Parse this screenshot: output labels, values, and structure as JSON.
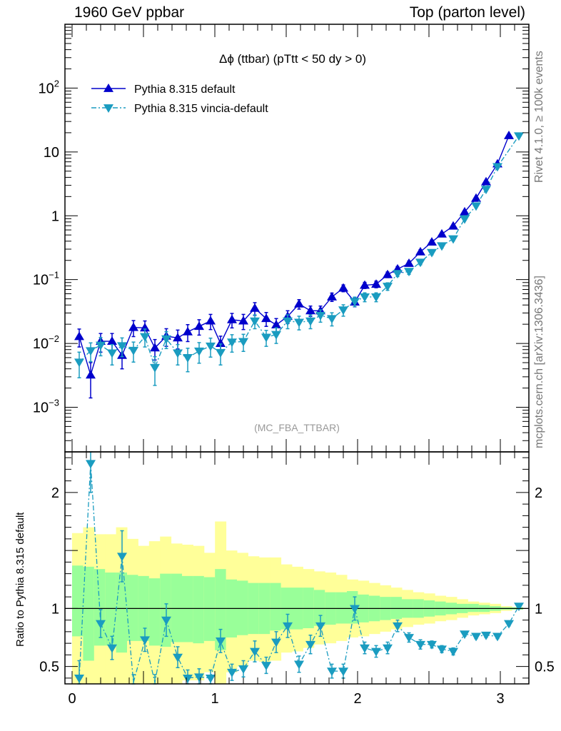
{
  "header": {
    "left": "1960 GeV ppbar",
    "right": "Top (parton level)"
  },
  "side_labels": {
    "rivet": "Rivet 4.1.0, ≥ 100k events",
    "mcplots": "mcplots.cern.ch [arXiv:1306.3436]"
  },
  "chart_data": {
    "type": "line",
    "title": "Δϕ (ttbar) (pTtt < 50 dy > 0)",
    "watermark": "(MC_FBA_TTBAR)",
    "xlabel": "",
    "ylabel": "",
    "xlim": [
      -0.05,
      3.2
    ],
    "ylim_log": [
      0.0002,
      1000
    ],
    "y_ticks": [
      {
        "value": 0.001,
        "base": "10",
        "exp": "−3"
      },
      {
        "value": 0.01,
        "base": "10",
        "exp": "−2"
      },
      {
        "value": 0.1,
        "base": "10",
        "exp": "−1"
      },
      {
        "value": 1,
        "base": "1",
        "exp": ""
      },
      {
        "value": 10,
        "base": "10",
        "exp": ""
      },
      {
        "value": 100,
        "base": "10",
        "exp": "2"
      }
    ],
    "x_tick_labels": [
      "0",
      "1",
      "2",
      "3"
    ],
    "x": [
      0.05,
      0.13,
      0.2,
      0.28,
      0.35,
      0.43,
      0.51,
      0.58,
      0.66,
      0.74,
      0.81,
      0.89,
      0.97,
      1.04,
      1.12,
      1.2,
      1.28,
      1.36,
      1.43,
      1.51,
      1.59,
      1.67,
      1.74,
      1.82,
      1.9,
      1.98,
      2.05,
      2.13,
      2.21,
      2.28,
      2.36,
      2.44,
      2.52,
      2.59,
      2.67,
      2.75,
      2.83,
      2.9,
      2.98,
      3.06,
      3.13
    ],
    "series": [
      {
        "name": "Pythia 8.315 default",
        "color": "#0000cc",
        "marker": "triangle-up",
        "line": "solid",
        "values": [
          0.0128,
          0.0032,
          0.0108,
          0.0108,
          0.0065,
          0.0178,
          0.0175,
          0.0085,
          0.013,
          0.0122,
          0.0152,
          0.0185,
          0.0225,
          0.01,
          0.0235,
          0.0225,
          0.0355,
          0.0245,
          0.0195,
          0.0265,
          0.0415,
          0.0325,
          0.0325,
          0.0535,
          0.0735,
          0.0445,
          0.0815,
          0.0845,
          0.1195,
          0.1465,
          0.1795,
          0.2715,
          0.3875,
          0.5175,
          0.6885,
          1.1475,
          1.8775,
          3.3965,
          6.4975,
          17.9975,
          null
        ],
        "err": [
          0.004,
          0.0018,
          0.0035,
          0.0035,
          0.0025,
          0.005,
          0.005,
          0.003,
          0.004,
          0.004,
          0.0045,
          0.005,
          0.006,
          0.003,
          0.006,
          0.006,
          0.008,
          0.006,
          0.005,
          0.006,
          0.007,
          0.006,
          0.006,
          0.008,
          0.009,
          0.007,
          0.009,
          0.01,
          0.012,
          0.014,
          0.016,
          0.022,
          0.03,
          0.035,
          0.045,
          0.07,
          0.1,
          0.16,
          0.28,
          0.6,
          null
        ]
      },
      {
        "name": "Pythia 8.315 vincia-default",
        "color": "#1a9cc0",
        "marker": "triangle-down",
        "line": "dashdot",
        "values": [
          0.0051,
          0.0077,
          0.0094,
          0.0071,
          0.0092,
          0.0078,
          0.0128,
          0.0042,
          0.0118,
          0.0071,
          0.006,
          0.0076,
          0.0091,
          0.0072,
          0.0105,
          0.0107,
          0.0225,
          0.0125,
          0.0138,
          0.0225,
          0.0215,
          0.0225,
          0.0275,
          0.0245,
          0.0335,
          0.0455,
          0.0535,
          0.0535,
          0.0785,
          0.1245,
          0.1345,
          0.1875,
          0.2665,
          0.3385,
          0.4355,
          0.8945,
          1.4275,
          2.5975,
          5.8875,
          null,
          17.8775
        ],
        "err": [
          0.0022,
          0.0025,
          0.003,
          0.0025,
          0.003,
          0.0027,
          0.004,
          0.002,
          0.0035,
          0.0025,
          0.0024,
          0.0027,
          0.003,
          0.0026,
          0.0032,
          0.0032,
          0.0055,
          0.0035,
          0.0038,
          0.0055,
          0.0052,
          0.0055,
          0.006,
          0.0057,
          0.0068,
          0.0077,
          0.0085,
          0.0085,
          0.0105,
          0.013,
          0.014,
          0.017,
          0.022,
          0.026,
          0.031,
          0.05,
          0.08,
          0.14,
          0.25,
          null,
          0.6
        ]
      }
    ],
    "ratio": {
      "ylabel": "Ratio to Pythia 8.315 default",
      "ylim": [
        0.35,
        2.35
      ],
      "y_ticks": [
        "0.5",
        "1",
        "2"
      ],
      "reference_value": 1.0,
      "bin_edges": [
        0.0,
        0.077,
        0.154,
        0.231,
        0.308,
        0.385,
        0.462,
        0.539,
        0.616,
        0.693,
        0.77,
        0.847,
        0.924,
        1.001,
        1.078,
        1.155,
        1.232,
        1.309,
        1.386,
        1.463,
        1.54,
        1.617,
        1.694,
        1.771,
        1.848,
        1.925,
        2.002,
        2.079,
        2.156,
        2.233,
        2.31,
        2.387,
        2.464,
        2.541,
        2.618,
        2.695,
        2.772,
        2.849,
        2.926,
        3.003,
        3.08,
        3.157
      ],
      "band_green_upper": [
        1.37,
        1.36,
        1.34,
        1.31,
        1.31,
        1.29,
        1.28,
        1.26,
        1.3,
        1.3,
        1.28,
        1.28,
        1.27,
        1.34,
        1.25,
        1.24,
        1.22,
        1.22,
        1.22,
        1.18,
        1.18,
        1.18,
        1.16,
        1.14,
        1.14,
        1.15,
        1.12,
        1.11,
        1.1,
        1.1,
        1.08,
        1.08,
        1.07,
        1.06,
        1.05,
        1.04,
        1.04,
        1.03,
        1.02,
        1.01,
        1.01
      ],
      "band_yellow_upper": [
        1.65,
        1.7,
        1.64,
        1.64,
        1.7,
        1.6,
        1.54,
        1.58,
        1.62,
        1.56,
        1.55,
        1.54,
        1.48,
        1.75,
        1.5,
        1.48,
        1.45,
        1.44,
        1.44,
        1.38,
        1.36,
        1.34,
        1.32,
        1.31,
        1.29,
        1.25,
        1.24,
        1.22,
        1.2,
        1.18,
        1.16,
        1.14,
        1.13,
        1.11,
        1.1,
        1.08,
        1.06,
        1.05,
        1.04,
        1.02,
        1.01
      ],
      "band_green_lower": [
        0.76,
        0.55,
        0.68,
        0.68,
        0.62,
        0.72,
        0.72,
        0.68,
        0.67,
        0.71,
        0.71,
        0.7,
        0.72,
        0.64,
        0.75,
        0.77,
        0.78,
        0.78,
        0.81,
        0.82,
        0.82,
        0.83,
        0.85,
        0.86,
        0.87,
        0.87,
        0.88,
        0.89,
        0.9,
        0.91,
        0.92,
        0.92,
        0.93,
        0.94,
        0.95,
        0.96,
        0.97,
        0.97,
        0.98,
        0.99,
        0.99
      ],
      "band_yellow_lower": [
        0.35,
        0.35,
        0.35,
        0.35,
        0.35,
        0.35,
        0.35,
        0.35,
        0.35,
        0.35,
        0.38,
        0.38,
        0.45,
        0.35,
        0.45,
        0.5,
        0.55,
        0.54,
        0.55,
        0.62,
        0.63,
        0.66,
        0.69,
        0.7,
        0.72,
        0.75,
        0.76,
        0.78,
        0.8,
        0.82,
        0.84,
        0.86,
        0.87,
        0.89,
        0.9,
        0.92,
        0.94,
        0.95,
        0.96,
        0.98,
        0.99
      ],
      "values": [
        0.4,
        2.25,
        0.87,
        0.66,
        1.45,
        0.35,
        0.73,
        0.35,
        0.9,
        0.58,
        0.4,
        0.41,
        0.4,
        0.72,
        0.45,
        0.48,
        0.63,
        0.51,
        0.71,
        0.85,
        0.52,
        0.69,
        0.85,
        0.46,
        0.46,
        1.0,
        0.66,
        0.63,
        0.66,
        0.85,
        0.75,
        0.69,
        0.69,
        0.65,
        0.63,
        0.78,
        0.76,
        0.77,
        0.76,
        0.87,
        1.02
      ],
      "err": [
        0.15,
        0.25,
        0.12,
        0.1,
        0.22,
        0.08,
        0.1,
        0.08,
        0.14,
        0.09,
        0.07,
        0.07,
        0.07,
        0.1,
        0.07,
        0.07,
        0.09,
        0.07,
        0.09,
        0.1,
        0.07,
        0.08,
        0.09,
        0.06,
        0.06,
        0.1,
        0.05,
        0.05,
        0.05,
        0.05,
        0.04,
        0.04,
        0.03,
        0.03,
        0.03,
        0.02,
        0.02,
        0.02,
        0.02,
        0.02,
        0.01
      ]
    }
  }
}
